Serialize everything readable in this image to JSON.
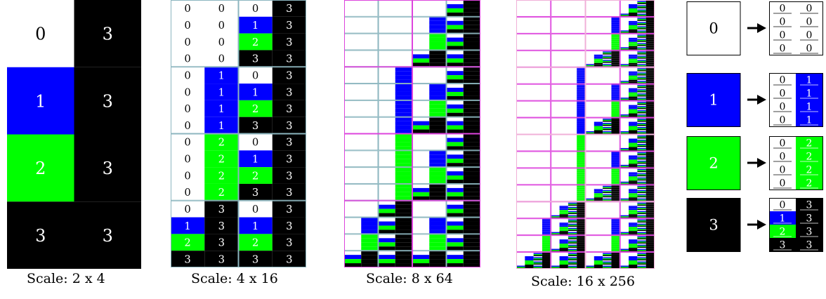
{
  "palette": {
    "0": "#ffffff",
    "1": "#0000ff",
    "2": "#00ff00",
    "3": "#000000",
    "grid_teal": "#8cb6bf",
    "grid_red": "#cc2222",
    "grid_magenta": "#dd44dd",
    "grid_pink": "#f0b0d8"
  },
  "panels": [
    {
      "caption": "Scale: 2 x 4"
    },
    {
      "caption": "Scale: 4 x 16"
    },
    {
      "caption": "Scale: 8 x 64"
    },
    {
      "caption": "Scale: 16 x 256"
    }
  ],
  "legend": {
    "rules": [
      {
        "source": "0",
        "result": [
          [
            "0",
            "0"
          ],
          [
            "0",
            "0"
          ],
          [
            "0",
            "0"
          ],
          [
            "0",
            "0"
          ]
        ]
      },
      {
        "source": "1",
        "result": [
          [
            "0",
            "1"
          ],
          [
            "0",
            "1"
          ],
          [
            "0",
            "1"
          ],
          [
            "0",
            "1"
          ]
        ]
      },
      {
        "source": "2",
        "result": [
          [
            "0",
            "2"
          ],
          [
            "0",
            "2"
          ],
          [
            "0",
            "2"
          ],
          [
            "0",
            "2"
          ]
        ]
      },
      {
        "source": "3",
        "result": [
          [
            "0",
            "3"
          ],
          [
            "1",
            "3"
          ],
          [
            "2",
            "3"
          ],
          [
            "3",
            "3"
          ]
        ]
      }
    ]
  }
}
